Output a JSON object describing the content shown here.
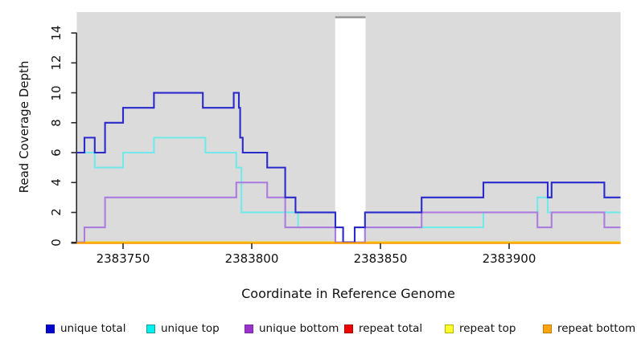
{
  "chart_data": {
    "type": "line",
    "subtype": "step-coverage",
    "title": "",
    "xlabel": "Coordinate in Reference Genome",
    "ylabel": "Read Coverage Depth",
    "xlim": [
      2383732,
      2383943
    ],
    "ylim": [
      0,
      15.4
    ],
    "x_ticks": [
      2383750,
      2383800,
      2383850,
      2383900
    ],
    "y_ticks": [
      0,
      2,
      4,
      6,
      8,
      10,
      12,
      14
    ],
    "grid": false,
    "panel_bg": "#DBDBDB",
    "masked_region": {
      "x_start": 2383832.4,
      "x_end": 2383844.2,
      "fill": "#FFFFFF",
      "top_border_color": "#8F8F8F"
    },
    "legend_position": "bottom",
    "draw_order": [
      "repeat total",
      "repeat top",
      "unique top",
      "unique bottom",
      "unique total",
      "repeat bottom"
    ],
    "series": [
      {
        "name": "unique total",
        "color": "#2A2ACC",
        "legend_fill": "#0000CC",
        "legend_border": "#0000AA",
        "steps": [
          [
            2383732,
            6
          ],
          [
            2383735,
            7
          ],
          [
            2383739,
            6
          ],
          [
            2383743,
            8
          ],
          [
            2383750,
            9
          ],
          [
            2383762,
            10
          ],
          [
            2383781,
            9
          ],
          [
            2383793,
            10
          ],
          [
            2383795,
            9
          ],
          [
            2383795.5,
            7
          ],
          [
            2383796.5,
            6
          ],
          [
            2383806,
            5
          ],
          [
            2383813,
            3
          ],
          [
            2383817,
            2
          ],
          [
            2383832.5,
            1
          ],
          [
            2383835.5,
            0
          ],
          [
            2383840,
            1
          ],
          [
            2383844,
            2
          ],
          [
            2383866,
            3
          ],
          [
            2383890,
            4
          ],
          [
            2383915,
            3
          ],
          [
            2383916.5,
            4
          ],
          [
            2383937,
            3
          ]
        ],
        "end": 2383943
      },
      {
        "name": "unique top",
        "color": "#70E9E9",
        "legend_fill": "#00F0F0",
        "legend_border": "#1F9999",
        "steps": [
          [
            2383732,
            6
          ],
          [
            2383739,
            5
          ],
          [
            2383750,
            6
          ],
          [
            2383762,
            7
          ],
          [
            2383782,
            6
          ],
          [
            2383794,
            5
          ],
          [
            2383796,
            2
          ],
          [
            2383818,
            1
          ],
          [
            2383832.5,
            0
          ],
          [
            2383844,
            1
          ],
          [
            2383890,
            2
          ],
          [
            2383911,
            3
          ],
          [
            2383915,
            2
          ]
        ],
        "end": 2383943
      },
      {
        "name": "unique bottom",
        "color": "#AC7CDE",
        "legend_fill": "#9933CC",
        "legend_border": "#7A2CA0",
        "steps": [
          [
            2383732,
            0
          ],
          [
            2383735,
            1
          ],
          [
            2383743,
            3
          ],
          [
            2383794,
            4
          ],
          [
            2383806,
            3
          ],
          [
            2383813,
            1
          ],
          [
            2383832.5,
            0
          ],
          [
            2383844,
            1
          ],
          [
            2383866,
            2
          ],
          [
            2383911,
            1
          ],
          [
            2383916.5,
            2
          ],
          [
            2383937,
            1
          ]
        ],
        "end": 2383943
      },
      {
        "name": "repeat total",
        "color": "#DD0000",
        "legend_fill": "#EE0000",
        "legend_border": "#AA0000",
        "steps": [
          [
            2383732,
            0
          ]
        ],
        "end": 2383943
      },
      {
        "name": "repeat top",
        "color": "#FFFF00",
        "legend_fill": "#FFFF2E",
        "legend_border": "#B5B500",
        "steps": [
          [
            2383732,
            0
          ]
        ],
        "end": 2383943
      },
      {
        "name": "repeat bottom",
        "color": "#FF9D00",
        "legend_fill": "#FFA510",
        "legend_border": "#C27A00",
        "steps": [
          [
            2383732,
            0
          ]
        ],
        "end": 2383943
      }
    ]
  }
}
